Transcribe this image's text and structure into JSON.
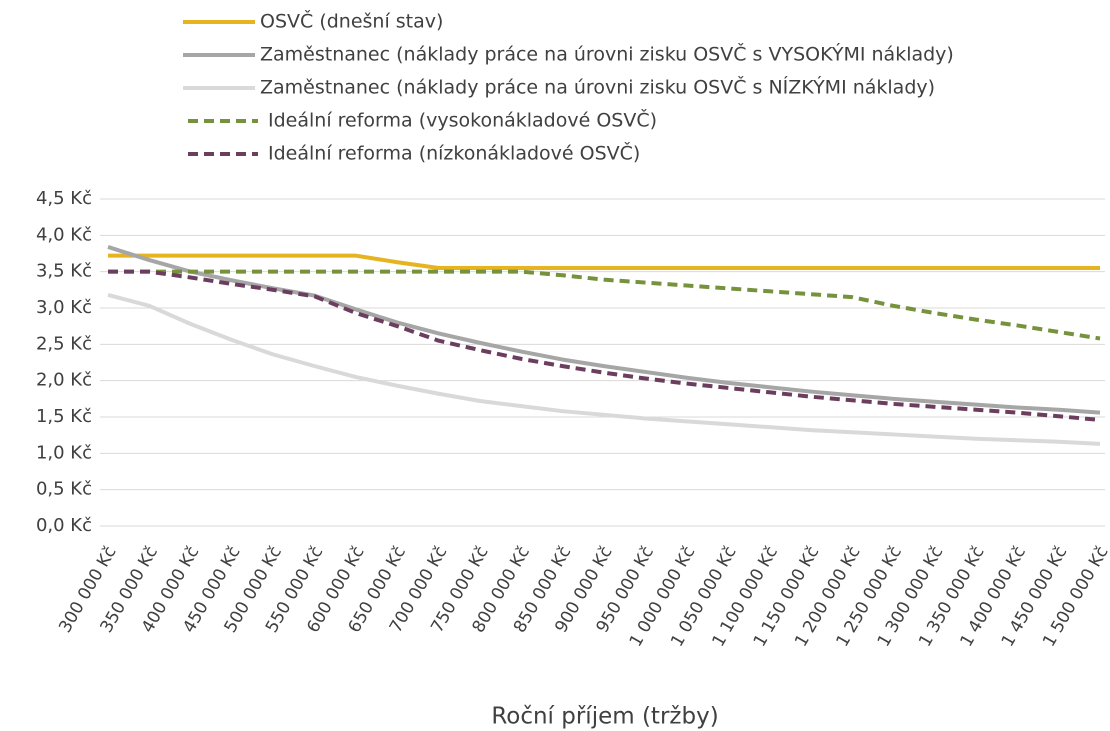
{
  "chart_data": {
    "type": "line",
    "x_label": "Roční příjem (tržby)",
    "categories": [
      "300 000 Kč",
      "350 000 Kč",
      "400 000 Kč",
      "450 000 Kč",
      "500 000 Kč",
      "550 000 Kč",
      "600 000 Kč",
      "650 000 Kč",
      "700 000 Kč",
      "750 000 Kč",
      "800 000 Kč",
      "850 000 Kč",
      "900 000 Kč",
      "950 000 Kč",
      "1 000 000 Kč",
      "1 050 000 Kč",
      "1 100 000 Kč",
      "1 150 000 Kč",
      "1 200 000 Kč",
      "1 250 000 Kč",
      "1 300 000 Kč",
      "1 350 000 Kč",
      "1 400 000 Kč",
      "1 450 000 Kč",
      "1 500 000 Kč"
    ],
    "series": [
      {
        "name": "OSVČ (dnešní stav)",
        "color": "#e6b321",
        "style": "solid",
        "values": [
          3.72,
          3.72,
          3.72,
          3.72,
          3.72,
          3.72,
          3.72,
          3.63,
          3.55,
          3.55,
          3.55,
          3.55,
          3.55,
          3.55,
          3.55,
          3.55,
          3.55,
          3.55,
          3.55,
          3.55,
          3.55,
          3.55,
          3.55,
          3.55,
          3.55
        ]
      },
      {
        "name": "Zaměstnanec (náklady práce na úrovni zisku OSVČ s VYSOKÝMI náklady)",
        "color": "#a6a6a6",
        "style": "solid",
        "values": [
          3.84,
          3.66,
          3.5,
          3.38,
          3.27,
          3.17,
          2.98,
          2.8,
          2.65,
          2.52,
          2.4,
          2.29,
          2.2,
          2.12,
          2.04,
          1.97,
          1.91,
          1.85,
          1.8,
          1.75,
          1.71,
          1.67,
          1.63,
          1.6,
          1.56
        ]
      },
      {
        "name": "Zaměstnanec (náklady práce na úrovni zisku OSVČ s NÍZKÝMI náklady)",
        "color": "#d9d9d9",
        "style": "solid",
        "values": [
          3.18,
          3.03,
          2.78,
          2.56,
          2.36,
          2.2,
          2.05,
          1.93,
          1.82,
          1.72,
          1.65,
          1.58,
          1.53,
          1.48,
          1.44,
          1.4,
          1.36,
          1.32,
          1.29,
          1.26,
          1.23,
          1.2,
          1.18,
          1.16,
          1.13
        ]
      },
      {
        "name": "Ideální reforma (vysokonákladové OSVČ)",
        "color": "#76923c",
        "style": "dashed",
        "values": [
          3.5,
          3.5,
          3.5,
          3.5,
          3.5,
          3.5,
          3.5,
          3.5,
          3.5,
          3.5,
          3.5,
          3.45,
          3.39,
          3.35,
          3.31,
          3.27,
          3.23,
          3.19,
          3.15,
          3.03,
          2.93,
          2.84,
          2.76,
          2.67,
          2.58
        ]
      },
      {
        "name": "Ideální reforma (nízkonákladové OSVČ)",
        "color": "#6b3d5e",
        "style": "dashed",
        "values": [
          3.5,
          3.5,
          3.42,
          3.33,
          3.25,
          3.16,
          2.93,
          2.75,
          2.55,
          2.42,
          2.3,
          2.2,
          2.11,
          2.03,
          1.96,
          1.9,
          1.84,
          1.78,
          1.73,
          1.68,
          1.64,
          1.6,
          1.56,
          1.51,
          1.46
        ]
      }
    ],
    "ylim": [
      0,
      4.5
    ],
    "yticks": [
      {
        "value": 0,
        "label": "0,0 Kč"
      },
      {
        "value": 0.5,
        "label": "0,5 Kč"
      },
      {
        "value": 1,
        "label": "1,0 Kč"
      },
      {
        "value": 1.5,
        "label": "1,5 Kč"
      },
      {
        "value": 2,
        "label": "2,0 Kč"
      },
      {
        "value": 2.5,
        "label": "2,5 Kč"
      },
      {
        "value": 3,
        "label": "3,0 Kč"
      },
      {
        "value": 3.5,
        "label": "3,5 Kč"
      },
      {
        "value": 4,
        "label": "4,0 Kč"
      },
      {
        "value": 4.5,
        "label": "4,5 Kč"
      }
    ],
    "grid": true,
    "legend": "top"
  }
}
